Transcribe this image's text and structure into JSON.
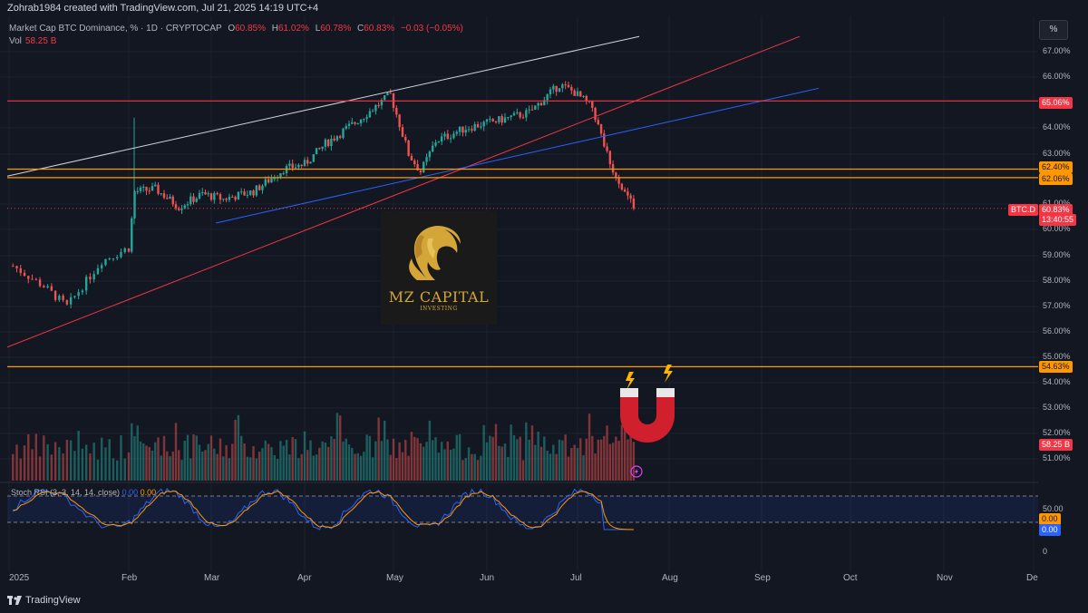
{
  "header": {
    "credit": "Zohrab1984 created with TradingView.com, Jul 21, 2025 14:19 UTC+4"
  },
  "legend": {
    "symbol": "Market Cap BTC Dominance, % · 1D · CRYPTOCAP",
    "o_label": "O",
    "o": "60.85%",
    "h_label": "H",
    "h": "61.02%",
    "l_label": "L",
    "l": "60.78%",
    "c_label": "C",
    "c": "60.83%",
    "change": "−0.03 (−0.05%)",
    "vol_label": "Vol",
    "vol": "58.25 B"
  },
  "scale_button": "%",
  "price_axis": [
    "67.00%",
    "66.00%",
    "64.00%",
    "63.00%",
    "61.00%",
    "60.00%",
    "59.00%",
    "58.00%",
    "57.00%",
    "56.00%",
    "55.00%",
    "54.00%",
    "53.00%",
    "52.00%",
    "51.00%"
  ],
  "price_badges": {
    "line_65": "65.06%",
    "line_6240": "62.40%",
    "line_6206": "62.06%",
    "btcd_tag": "BTC.D",
    "current": "60.83%",
    "countdown": "13:40:55",
    "line_5463": "54.63%",
    "volume": "58.25 B"
  },
  "time_axis": [
    "2025",
    "Feb",
    "Mar",
    "Apr",
    "May",
    "Jun",
    "Jul",
    "Aug",
    "Sep",
    "Oct",
    "Nov",
    "De"
  ],
  "watermark": {
    "title": "MZ CAPITAL",
    "subtitle": "INVESTING"
  },
  "rsi": {
    "title": "Stoch RSI (3, 3, 14, 14, close)",
    "k": "0.00",
    "d": "0.00",
    "axis": [
      "50.00",
      "0"
    ],
    "badge_d": "0.00",
    "badge_k": "0.00"
  },
  "footer": {
    "brand": "TradingView"
  },
  "colors": {
    "background": "#131722",
    "up": "#26a69a",
    "down": "#ef5350",
    "orange": "#ff9800",
    "red_line": "#f23645",
    "blue_line": "#2962ff"
  },
  "chart_data": {
    "type": "candlestick",
    "symbol": "BTC.D",
    "timeframe": "1D",
    "x_range": [
      "2025-01-01",
      "2025-12-01"
    ],
    "y_range": [
      50.5,
      67.5
    ],
    "last_close": 60.83,
    "levels": [
      65.06,
      62.4,
      62.06,
      54.63
    ],
    "close_path_approx": [
      [
        "2025-01-02",
        58.6
      ],
      [
        "2025-01-10",
        57.8
      ],
      [
        "2025-01-16",
        57.0
      ],
      [
        "2025-01-25",
        58.8
      ],
      [
        "2025-02-01",
        59.3
      ],
      [
        "2025-02-03",
        61.5
      ],
      [
        "2025-02-10",
        61.6
      ],
      [
        "2025-02-18",
        60.9
      ],
      [
        "2025-02-26",
        61.4
      ],
      [
        "2025-03-05",
        61.2
      ],
      [
        "2025-03-15",
        61.5
      ],
      [
        "2025-03-25",
        62.4
      ],
      [
        "2025-04-01",
        62.6
      ],
      [
        "2025-04-08",
        63.4
      ],
      [
        "2025-04-18",
        64.2
      ],
      [
        "2025-04-30",
        65.3
      ],
      [
        "2025-05-06",
        63.0
      ],
      [
        "2025-05-10",
        62.3
      ],
      [
        "2025-05-15",
        63.5
      ],
      [
        "2025-05-25",
        64.0
      ],
      [
        "2025-06-05",
        64.3
      ],
      [
        "2025-06-15",
        64.6
      ],
      [
        "2025-06-25",
        65.7
      ],
      [
        "2025-06-30",
        65.4
      ],
      [
        "2025-07-06",
        64.8
      ],
      [
        "2025-07-12",
        62.6
      ],
      [
        "2025-07-20",
        60.83
      ]
    ]
  }
}
